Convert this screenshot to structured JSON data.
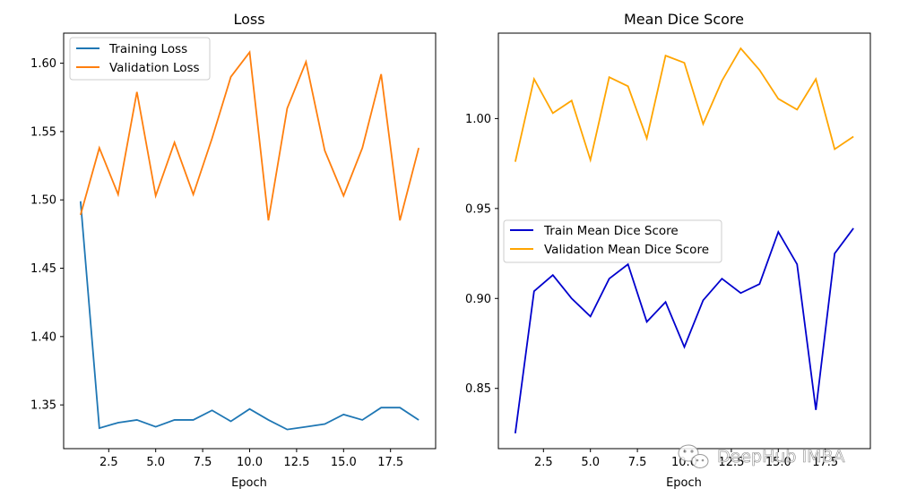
{
  "chart_data": [
    {
      "type": "line",
      "title": "Loss",
      "xlabel": "Epoch",
      "ylabel": "",
      "x": [
        1,
        2,
        3,
        4,
        5,
        6,
        7,
        8,
        9,
        10,
        11,
        12,
        13,
        14,
        15,
        16,
        17,
        18,
        19
      ],
      "xlim": [
        0.1,
        19.9
      ],
      "ylim": [
        1.318,
        1.622
      ],
      "xticks": [
        2.5,
        5.0,
        7.5,
        10.0,
        12.5,
        15.0,
        17.5
      ],
      "xtick_labels": [
        "2.5",
        "5.0",
        "7.5",
        "10.0",
        "12.5",
        "15.0",
        "17.5"
      ],
      "yticks": [
        1.35,
        1.4,
        1.45,
        1.5,
        1.55,
        1.6
      ],
      "ytick_labels": [
        "1.35",
        "1.40",
        "1.45",
        "1.50",
        "1.55",
        "1.60"
      ],
      "legend_position": "top-left",
      "series": [
        {
          "name": "Training Loss",
          "color": "#1f77b4",
          "values": [
            1.499,
            1.333,
            1.337,
            1.339,
            1.334,
            1.339,
            1.339,
            1.346,
            1.338,
            1.347,
            1.339,
            1.332,
            1.334,
            1.336,
            1.343,
            1.339,
            1.348,
            1.348,
            1.339
          ]
        },
        {
          "name": "Validation Loss",
          "color": "#ff7f0e",
          "values": [
            1.489,
            1.538,
            1.504,
            1.579,
            1.503,
            1.542,
            1.504,
            1.545,
            1.59,
            1.608,
            1.485,
            1.567,
            1.601,
            1.536,
            1.503,
            1.538,
            1.592,
            1.485,
            1.538
          ]
        }
      ]
    },
    {
      "type": "line",
      "title": "Mean Dice Score",
      "xlabel": "Epoch",
      "ylabel": "",
      "x": [
        1,
        2,
        3,
        4,
        5,
        6,
        7,
        8,
        9,
        10,
        11,
        12,
        13,
        14,
        15,
        16,
        17,
        18,
        19
      ],
      "xlim": [
        0.1,
        19.9
      ],
      "ylim": [
        0.8165,
        1.0475
      ],
      "xticks": [
        2.5,
        5.0,
        7.5,
        10.0,
        12.5,
        15.0,
        17.5
      ],
      "xtick_labels": [
        "2.5",
        "5.0",
        "7.5",
        "10.0",
        "12.5",
        "15.0",
        "17.5"
      ],
      "yticks": [
        0.85,
        0.9,
        0.95,
        1.0
      ],
      "ytick_labels": [
        "0.85",
        "0.90",
        "0.95",
        "1.00"
      ],
      "legend_position": "center-left",
      "series": [
        {
          "name": "Train Mean Dice Score",
          "color": "#0000cd",
          "values": [
            0.825,
            0.904,
            0.913,
            0.9,
            0.89,
            0.911,
            0.919,
            0.887,
            0.898,
            0.873,
            0.899,
            0.911,
            0.903,
            0.908,
            0.937,
            0.919,
            0.838,
            0.925,
            0.939
          ]
        },
        {
          "name": "Validation Mean Dice Score",
          "color": "#ffa500",
          "values": [
            0.976,
            1.022,
            1.003,
            1.01,
            0.977,
            1.023,
            1.018,
            0.989,
            1.035,
            1.031,
            0.997,
            1.021,
            1.039,
            1.027,
            1.011,
            1.005,
            1.022,
            0.983,
            0.99
          ]
        }
      ]
    }
  ],
  "watermark": {
    "text": "DeepHub IMBA",
    "icon": "wechat-icon"
  }
}
